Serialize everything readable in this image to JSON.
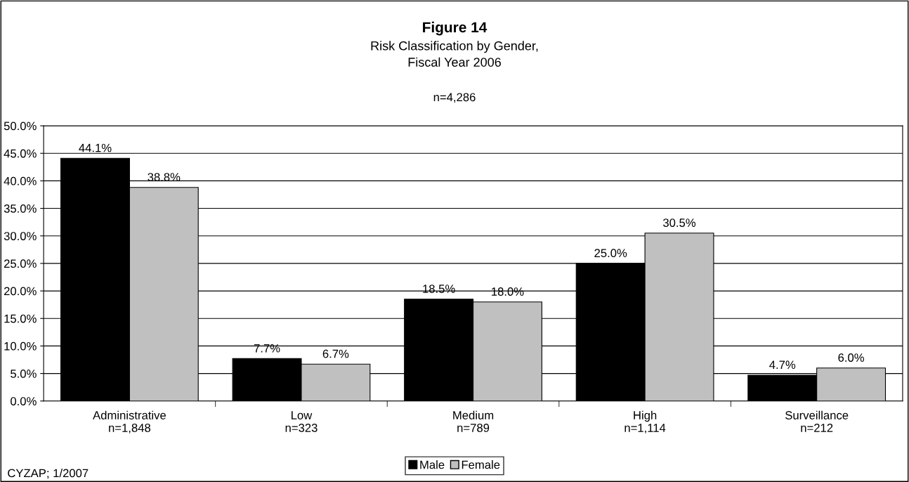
{
  "chart_data": {
    "type": "bar",
    "title": "Figure 14",
    "subtitle": "Risk Classification by Gender,\nFiscal Year 2006",
    "categories": [
      "Administrative\nn=1,848",
      "Low\nn=323",
      "Medium\nn=789",
      "High\nn=1,114",
      "Surveillance\nn=212"
    ],
    "series": [
      {
        "name": "Male",
        "color": "#000000",
        "values": [
          44.1,
          7.7,
          18.5,
          25.0,
          4.7
        ],
        "value_labels": [
          "44.1%",
          "7.7%",
          "18.5%",
          "25.0%",
          "4.7%"
        ]
      },
      {
        "name": "Female",
        "color": "#c0c0c0",
        "values": [
          38.8,
          6.7,
          18.0,
          30.5,
          6.0
        ],
        "value_labels": [
          "38.8%",
          "6.7%",
          "18.0%",
          "30.5%",
          "6.0%"
        ]
      }
    ],
    "ylim": [
      0,
      50
    ],
    "yticks": [
      {
        "value": 0,
        "label": "0.0%"
      },
      {
        "value": 5,
        "label": "5.0%"
      },
      {
        "value": 10,
        "label": "10.0%"
      },
      {
        "value": 15,
        "label": "15.0%"
      },
      {
        "value": 20,
        "label": "20.0%"
      },
      {
        "value": 25,
        "label": "25.0%"
      },
      {
        "value": 30,
        "label": "30.0%"
      },
      {
        "value": 35,
        "label": "35.0%"
      },
      {
        "value": 40,
        "label": "40.0%"
      },
      {
        "value": 45,
        "label": "45.0%"
      },
      {
        "value": 50,
        "label": "50.0%"
      }
    ],
    "grid": "y",
    "legend": "bottom",
    "annotations": [
      "n=4,286",
      "CYZAP; 1/2007"
    ]
  }
}
